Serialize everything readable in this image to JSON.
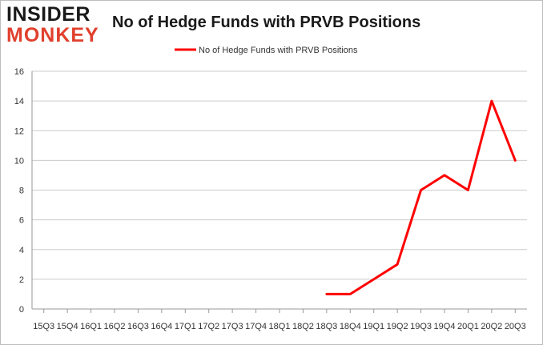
{
  "logo": {
    "line1": "INSIDER",
    "line2": "MONKEY"
  },
  "chart_data": {
    "type": "line",
    "title": "No of Hedge Funds with PRVB Positions",
    "xlabel": "",
    "ylabel": "",
    "categories": [
      "2015Q3",
      "2015Q4",
      "2016Q1",
      "2016Q2",
      "2016Q3",
      "2016Q4",
      "2017Q1",
      "2017Q2",
      "2017Q3",
      "2017Q4",
      "2018Q1",
      "2018Q2",
      "2018Q3",
      "2018Q4",
      "2019Q1",
      "2019Q2",
      "2019Q3",
      "2019Q4",
      "2020Q1",
      "2020Q2",
      "2020Q3"
    ],
    "tick_labels": [
      "15Q3",
      "15Q4",
      "16Q1",
      "16Q2",
      "16Q3",
      "16Q4",
      "17Q1",
      "17Q2",
      "17Q3",
      "17Q4",
      "18Q1",
      "18Q2",
      "18Q3",
      "18Q4",
      "19Q1",
      "19Q2",
      "19Q3",
      "19Q4",
      "20Q1",
      "20Q2",
      "20Q3"
    ],
    "series": [
      {
        "name": "No of Hedge Funds with PRVB Positions",
        "color": "#ff0000",
        "values": [
          null,
          null,
          null,
          null,
          null,
          null,
          null,
          null,
          null,
          null,
          null,
          null,
          1,
          1,
          2,
          3,
          8,
          9,
          8,
          14,
          10
        ]
      }
    ],
    "ylim": [
      0,
      16
    ],
    "yticks": [
      0,
      2,
      4,
      6,
      8,
      10,
      12,
      14,
      16
    ],
    "grid": true,
    "legend": "top-center",
    "colors": {
      "axis": "#999999",
      "grid": "#cccccc",
      "line": "#ff0000"
    }
  }
}
